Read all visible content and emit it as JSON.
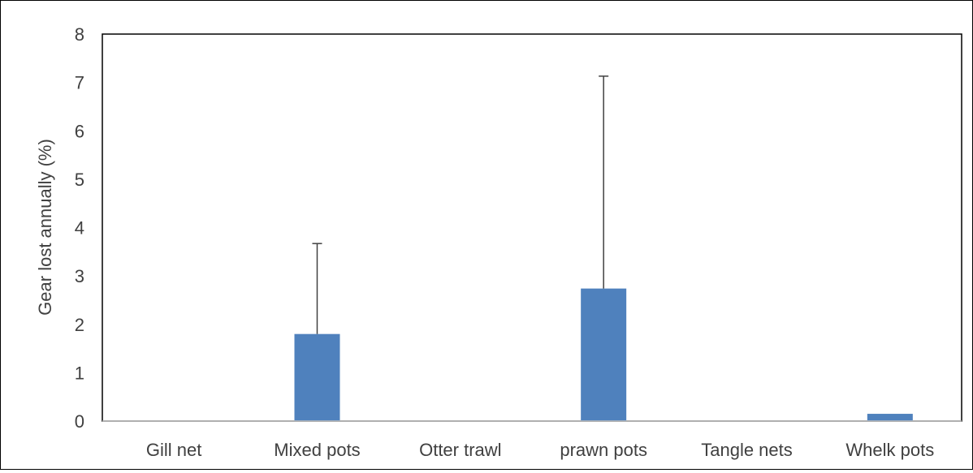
{
  "chart_data": {
    "type": "bar",
    "categories": [
      "Gill net",
      "Mixed pots",
      "Otter trawl",
      "prawn pots",
      "Tangle nets",
      "Whelk pots"
    ],
    "series": [
      {
        "values": [
          0,
          1.8,
          0,
          2.74,
          0,
          0.15
        ],
        "error_plus": [
          0,
          1.87,
          0,
          4.39,
          0,
          0
        ],
        "color": "#4f81bd"
      }
    ],
    "title": "",
    "xlabel": "",
    "ylabel": "Gear lost annually (%)",
    "ylim": [
      0,
      8
    ],
    "yticks": [
      0,
      1,
      2,
      3,
      4,
      5,
      6,
      7,
      8
    ],
    "grid": false,
    "legend": false,
    "error_bar_color": "#404040"
  }
}
